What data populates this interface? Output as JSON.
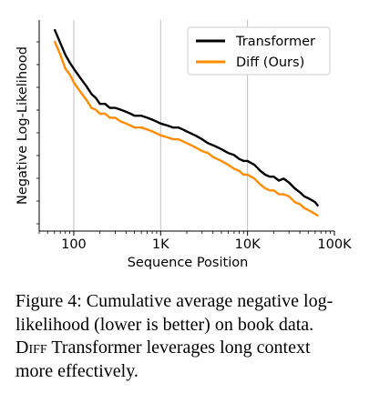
{
  "chart_data": {
    "type": "line",
    "xlabel": "Sequence Position",
    "ylabel": "Negative Log-Likelihood",
    "xscale": "log",
    "xlim": [
      40,
      100000
    ],
    "ylim": [
      0,
      1
    ],
    "grid": "x",
    "xticks": [
      {
        "value": 100,
        "label": "100"
      },
      {
        "value": 1000,
        "label": "1K"
      },
      {
        "value": 10000,
        "label": "10K"
      },
      {
        "value": 100000,
        "label": "100K"
      }
    ],
    "legend_position": "top-right",
    "series": [
      {
        "name": "Transformer",
        "color": "#000000",
        "x": [
          60,
          70,
          80,
          90,
          100,
          120,
          140,
          160,
          180,
          200,
          230,
          260,
          300,
          350,
          400,
          450,
          500,
          600,
          700,
          800,
          900,
          1000,
          1200,
          1400,
          1600,
          1800,
          2000,
          2500,
          3000,
          3500,
          4000,
          5000,
          6000,
          7000,
          8000,
          9000,
          10000,
          12000,
          14000,
          16000,
          18000,
          20000,
          23000,
          26000,
          30000,
          35000,
          40000,
          45000,
          50000,
          55000,
          60000,
          65000
        ],
        "values": [
          0.99,
          0.92,
          0.86,
          0.82,
          0.79,
          0.74,
          0.7,
          0.66,
          0.64,
          0.61,
          0.61,
          0.59,
          0.59,
          0.58,
          0.57,
          0.56,
          0.55,
          0.55,
          0.54,
          0.53,
          0.52,
          0.51,
          0.5,
          0.49,
          0.49,
          0.48,
          0.47,
          0.45,
          0.43,
          0.41,
          0.4,
          0.38,
          0.36,
          0.35,
          0.33,
          0.32,
          0.32,
          0.3,
          0.27,
          0.25,
          0.24,
          0.24,
          0.22,
          0.23,
          0.21,
          0.18,
          0.16,
          0.14,
          0.13,
          0.12,
          0.11,
          0.09
        ]
      },
      {
        "name": "Diff (Ours)",
        "color": "#ff8c00",
        "x": [
          60,
          70,
          80,
          90,
          100,
          120,
          140,
          160,
          180,
          200,
          230,
          260,
          300,
          350,
          400,
          450,
          500,
          600,
          700,
          800,
          900,
          1000,
          1200,
          1400,
          1600,
          1800,
          2000,
          2500,
          3000,
          3500,
          4000,
          5000,
          6000,
          7000,
          8000,
          9000,
          10000,
          12000,
          14000,
          16000,
          18000,
          20000,
          23000,
          26000,
          30000,
          35000,
          40000,
          45000,
          50000,
          55000,
          60000,
          65000
        ],
        "values": [
          0.93,
          0.86,
          0.79,
          0.76,
          0.72,
          0.67,
          0.63,
          0.59,
          0.58,
          0.56,
          0.56,
          0.54,
          0.54,
          0.52,
          0.51,
          0.5,
          0.49,
          0.49,
          0.48,
          0.47,
          0.46,
          0.45,
          0.44,
          0.43,
          0.43,
          0.42,
          0.41,
          0.39,
          0.37,
          0.36,
          0.34,
          0.32,
          0.3,
          0.28,
          0.27,
          0.25,
          0.25,
          0.23,
          0.2,
          0.18,
          0.17,
          0.17,
          0.15,
          0.15,
          0.14,
          0.11,
          0.1,
          0.08,
          0.07,
          0.06,
          0.05,
          0.04
        ]
      }
    ]
  },
  "caption": {
    "line1": "Figure 4: Cumulative average negative log-",
    "line2": "likelihood (lower is better) on book data.",
    "line3_sc": "Diff",
    "line3_rest": " Transformer leverages long context",
    "line4": "more effectively."
  }
}
